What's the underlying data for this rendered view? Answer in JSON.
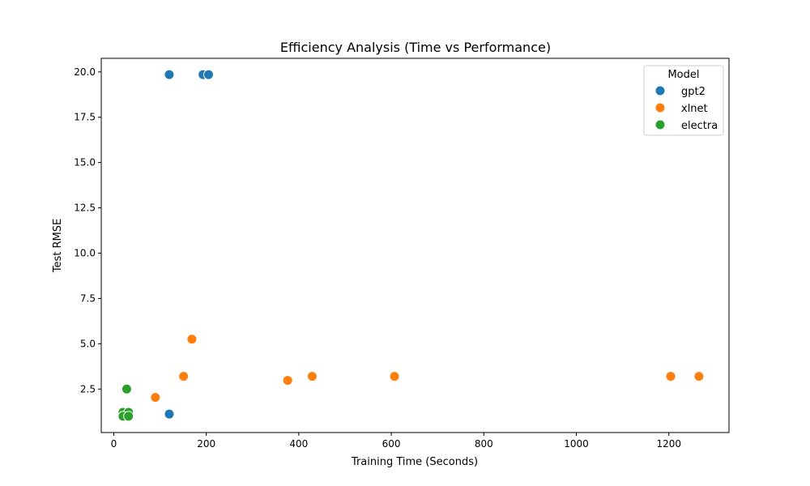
{
  "chart_data": {
    "type": "scatter",
    "title": "Efficiency Analysis (Time vs Performance)",
    "xlabel": "Training Time (Seconds)",
    "ylabel": "Test RMSE",
    "xlim": [
      -27,
      1330
    ],
    "ylim": [
      0.1,
      20.75
    ],
    "xticks": [
      0,
      200,
      400,
      600,
      800,
      1000,
      1200
    ],
    "yticks": [
      2.5,
      5.0,
      7.5,
      10.0,
      12.5,
      15.0,
      17.5,
      20.0
    ],
    "ytick_labels": [
      "2.5",
      "5.0",
      "7.5",
      "10.0",
      "12.5",
      "15.0",
      "17.5",
      "20.0"
    ],
    "grid": false,
    "legend": {
      "title": "Model",
      "placement": "top-right"
    },
    "series": [
      {
        "name": "gpt2",
        "color": "#1f77b4",
        "points": [
          [
            120,
            19.85
          ],
          [
            193,
            19.85
          ],
          [
            205,
            19.85
          ],
          [
            120,
            1.12
          ]
        ]
      },
      {
        "name": "xlnet",
        "color": "#ff7f0e",
        "points": [
          [
            169,
            5.25
          ],
          [
            151,
            3.2
          ],
          [
            90,
            2.04
          ],
          [
            376,
            2.98
          ],
          [
            429,
            3.2
          ],
          [
            607,
            3.2
          ],
          [
            1204,
            3.2
          ],
          [
            1265,
            3.2
          ]
        ]
      },
      {
        "name": "electra",
        "color": "#2ca02c",
        "points": [
          [
            28,
            2.5
          ],
          [
            20,
            1.22
          ],
          [
            32,
            1.22
          ],
          [
            20,
            1.0
          ],
          [
            32,
            1.0
          ]
        ]
      }
    ]
  }
}
